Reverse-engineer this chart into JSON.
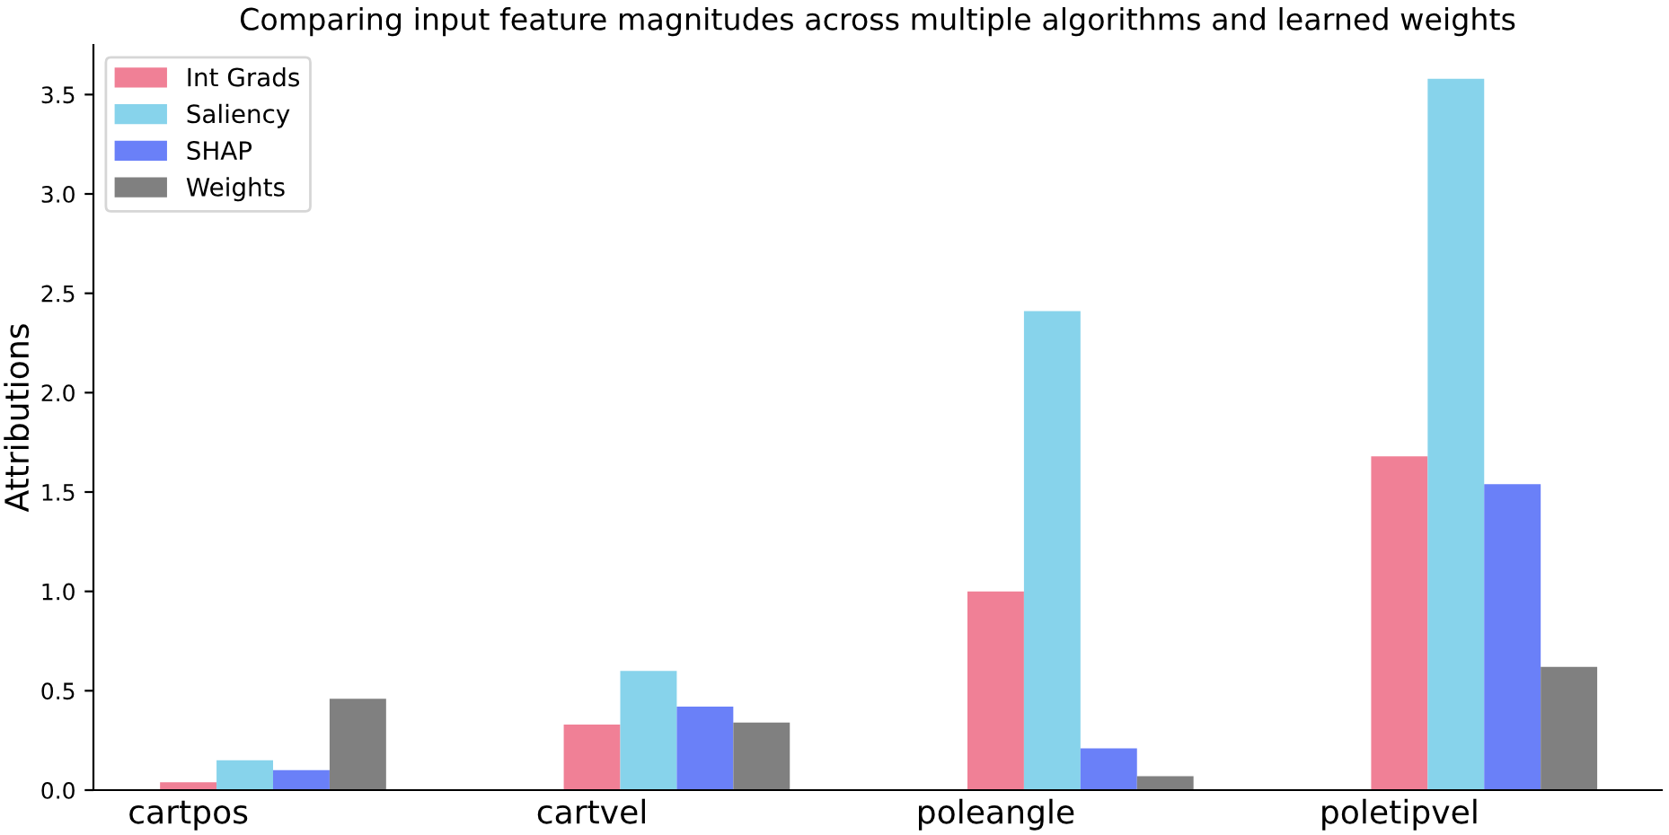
{
  "chart_data": {
    "type": "bar",
    "title": "Comparing input feature magnitudes across multiple algorithms and learned weights",
    "ylabel": "Attributions",
    "categories": [
      "cartpos",
      "cartvel",
      "poleangle",
      "poletipvel"
    ],
    "series": [
      {
        "name": "Int Grads",
        "color": "#f08096",
        "values": [
          0.04,
          0.33,
          1.0,
          1.68
        ]
      },
      {
        "name": "Saliency",
        "color": "#87d3eb",
        "values": [
          0.15,
          0.6,
          2.41,
          3.58
        ]
      },
      {
        "name": "SHAP",
        "color": "#6a80f8",
        "values": [
          0.1,
          0.42,
          0.21,
          1.54
        ]
      },
      {
        "name": "Weights",
        "color": "#808080",
        "values": [
          0.46,
          0.34,
          0.07,
          0.62
        ]
      }
    ],
    "ylim": [
      0,
      3.75
    ],
    "yticks": [
      {
        "value": 0,
        "label": "0.0"
      },
      {
        "value": 0.5,
        "label": "0.5"
      },
      {
        "value": 1,
        "label": "1.0"
      },
      {
        "value": 1.5,
        "label": "1.5"
      },
      {
        "value": 2,
        "label": "2.0"
      },
      {
        "value": 2.5,
        "label": "2.5"
      },
      {
        "value": 3,
        "label": "3.0"
      },
      {
        "value": 3.5,
        "label": "3.5"
      }
    ],
    "grid": false,
    "legend": "top left"
  }
}
